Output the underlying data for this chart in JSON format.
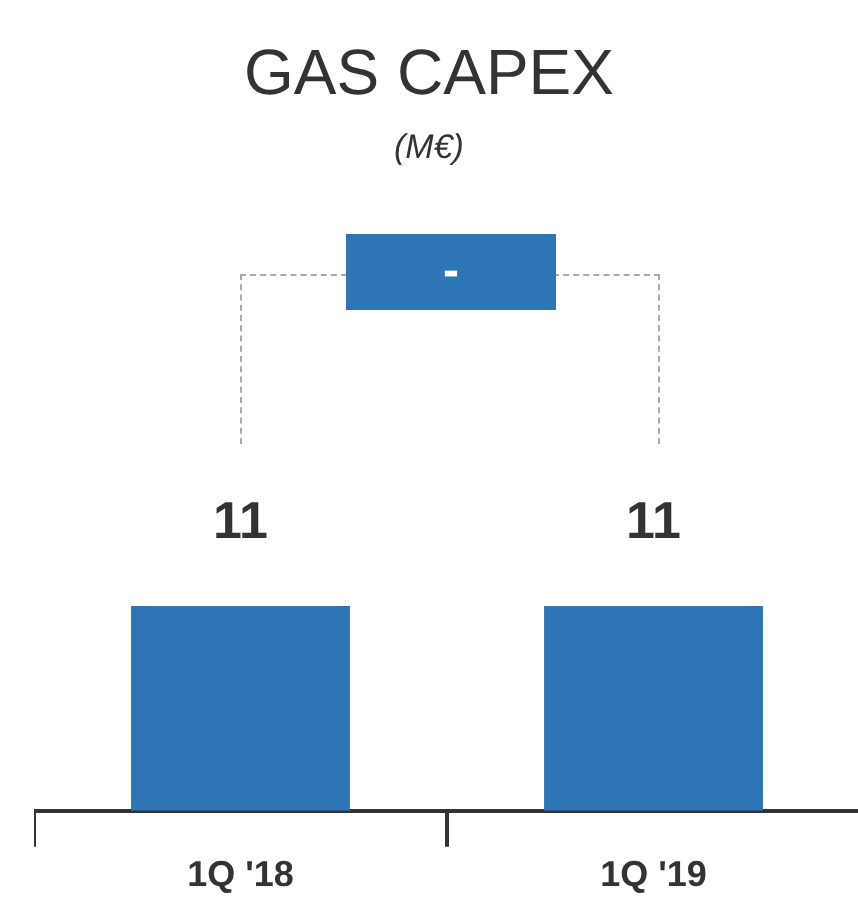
{
  "chart_data": {
    "type": "bar",
    "title": "GAS CAPEX",
    "subtitle": "(M€)",
    "categories": [
      "1Q '18",
      "1Q '19"
    ],
    "values": [
      11,
      11
    ],
    "color": "#2e75b6",
    "data_labels": true,
    "annotations": [
      "-"
    ]
  }
}
